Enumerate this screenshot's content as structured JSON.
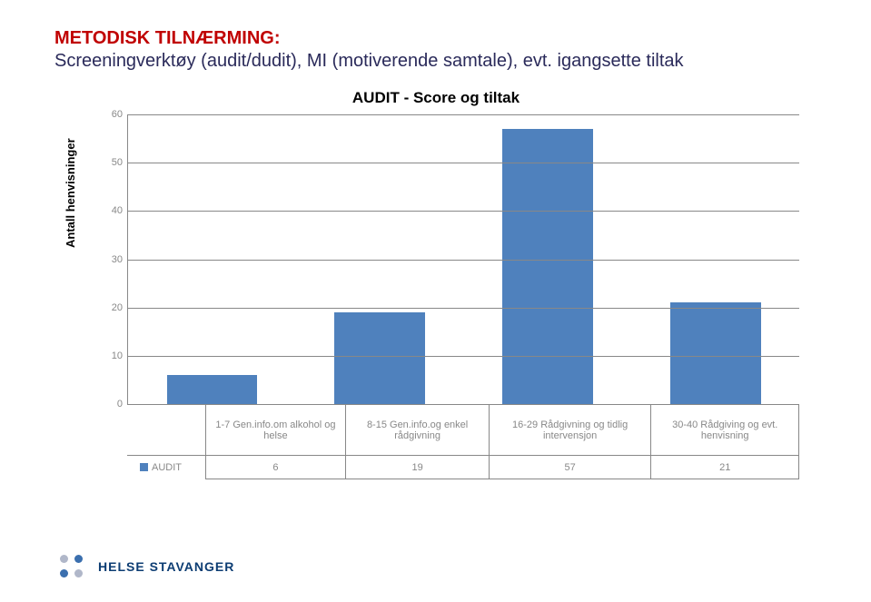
{
  "heading": {
    "line1": "METODISK TILNÆRMING:",
    "line2": "Screeningverktøy (audit/dudit), MI (motiverende samtale), evt. igangsette tiltak",
    "line1_color": "#c00000",
    "line2_color": "#2a2a5a",
    "fontsize": 20
  },
  "chart": {
    "type": "bar",
    "title": "AUDIT - Score og tiltak",
    "title_fontsize": 17,
    "title_color": "#000000",
    "ylabel": "Antall henvisninger",
    "ylabel_fontsize": 13,
    "ylim": [
      0,
      60
    ],
    "ytick_step": 10,
    "background_color": "#ffffff",
    "grid_color": "#888888",
    "axis_color": "#888888",
    "bar_color": "#4f81bd",
    "bar_width": 0.54,
    "categories": [
      "1-7 Gen.info.om alkohol og helse",
      "8-15 Gen.info.og enkel rådgivning",
      "16-29 Rådgivning og tidlig intervensjon",
      "30-40 Rådgiving og evt. henvisning"
    ],
    "series_label": "AUDIT",
    "values": [
      6,
      19,
      57,
      21
    ],
    "tick_label_color": "#888888",
    "tick_label_fontsize": 11,
    "legend_square_color": "#4f81bd"
  },
  "footer": {
    "org_name": "HELSE STAVANGER",
    "org_name_color": "#0d3d73",
    "logo_dot_colors": [
      "#b0b7c9",
      "#3b6fae",
      "#3b6fae",
      "#b0b7c9"
    ]
  }
}
